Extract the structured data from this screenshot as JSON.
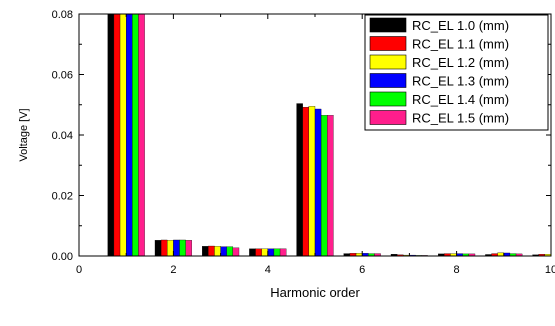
{
  "chart_data": {
    "type": "bar",
    "xlabel": "Harmonic order",
    "ylabel": "Voltage [V]",
    "xlim": [
      0,
      10
    ],
    "ylim": [
      0,
      0.08
    ],
    "x_ticks": [
      0,
      2,
      4,
      6,
      8,
      10
    ],
    "y_ticks": [
      0.0,
      0.02,
      0.04,
      0.06,
      0.08
    ],
    "x_tick_labels": [
      "0",
      "2",
      "4",
      "6",
      "8",
      "10"
    ],
    "y_tick_labels": [
      "0.00",
      "0.02",
      "0.04",
      "0.06",
      "0.08"
    ],
    "grid": false,
    "legend_position": "top-right",
    "categories": [
      1,
      2,
      3,
      4,
      5,
      6,
      7,
      8,
      9,
      10
    ],
    "series": [
      {
        "name": "RC_EL 1.0 (mm)",
        "color": "#000000",
        "values": [
          0.0815,
          0.0052,
          0.0032,
          0.0024,
          0.0504,
          0.0008,
          0.0006,
          0.0007,
          0.0005,
          0.0004
        ]
      },
      {
        "name": "RC_EL 1.1 (mm)",
        "color": "#ff0000",
        "values": [
          0.0815,
          0.0053,
          0.0033,
          0.0024,
          0.0492,
          0.0009,
          0.0004,
          0.0008,
          0.0008,
          0.0006
        ]
      },
      {
        "name": "RC_EL 1.2 (mm)",
        "color": "#ffff00",
        "values": [
          0.0815,
          0.0052,
          0.0032,
          0.0024,
          0.0495,
          0.0009,
          0.0003,
          0.0008,
          0.0011,
          0.0006
        ]
      },
      {
        "name": "RC_EL 1.3 (mm)",
        "color": "#0000ff",
        "values": [
          0.0815,
          0.0053,
          0.0031,
          0.0024,
          0.0486,
          0.0009,
          0.0003,
          0.0008,
          0.001,
          0.0006
        ]
      },
      {
        "name": "RC_EL 1.4 (mm)",
        "color": "#00ff00",
        "values": [
          0.0815,
          0.0053,
          0.0031,
          0.0024,
          0.0465,
          0.0008,
          0.0002,
          0.0007,
          0.0008,
          0.0005
        ]
      },
      {
        "name": "RC_EL 1.5 (mm)",
        "color": "#ff1e8c",
        "values": [
          0.0815,
          0.0052,
          0.0027,
          0.0024,
          0.0465,
          0.0008,
          0.0002,
          0.0007,
          0.0007,
          0.0005
        ]
      }
    ]
  }
}
